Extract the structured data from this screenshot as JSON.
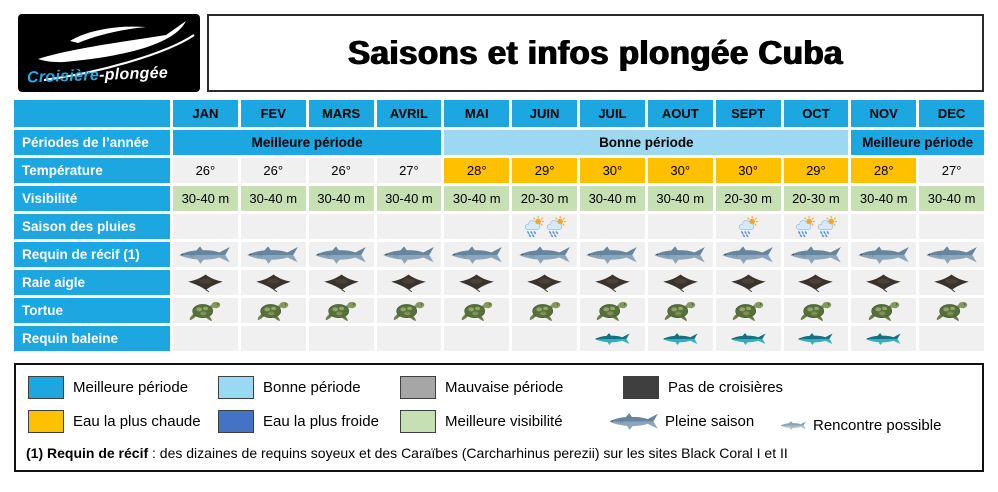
{
  "header": {
    "logo": {
      "brand": "Croisière-plongée",
      "brand_part1": "Croisière",
      "brand_part2": "-plongée"
    },
    "title": "Saisons et infos plongée Cuba"
  },
  "table": {
    "months": [
      "JAN",
      "FEV",
      "MARS",
      "AVRIL",
      "MAI",
      "JUIN",
      "JUIL",
      "AOUT",
      "SEPT",
      "OCT",
      "NOV",
      "DEC"
    ],
    "row_labels": [
      "Périodes de l’année",
      "Température",
      "Visibilité",
      "Saison des pluies",
      "Requin de récif (1)",
      "Raie aigle",
      "Tortue",
      "Requin baleine"
    ],
    "periods": [
      {
        "label": "Meilleure période",
        "months_span": 4,
        "type": "best"
      },
      {
        "label": "Bonne période",
        "months_span": 6,
        "type": "good"
      },
      {
        "label": "Meilleure période",
        "months_span": 2,
        "type": "best"
      }
    ],
    "temperature": {
      "values": [
        "26°",
        "26°",
        "26°",
        "27°",
        "28°",
        "29°",
        "30°",
        "30°",
        "30°",
        "29°",
        "28°",
        "27°"
      ],
      "hottest": [
        false,
        false,
        false,
        false,
        true,
        true,
        true,
        true,
        true,
        true,
        true,
        false
      ]
    },
    "visibility": [
      "30-40 m",
      "30-40 m",
      "30-40 m",
      "30-40 m",
      "30-40 m",
      "20-30 m",
      "30-40 m",
      "30-40 m",
      "20-30 m",
      "20-30 m",
      "30-40 m",
      "30-40 m"
    ],
    "rain_season_icons": [
      0,
      0,
      0,
      0,
      0,
      2,
      0,
      0,
      1,
      2,
      0,
      0
    ],
    "reef_shark": [
      1,
      1,
      1,
      1,
      1,
      1,
      1,
      1,
      1,
      1,
      1,
      1
    ],
    "eagle_ray": [
      1,
      1,
      1,
      1,
      1,
      1,
      1,
      1,
      1,
      1,
      1,
      1
    ],
    "turtle": [
      1,
      1,
      1,
      1,
      1,
      1,
      1,
      1,
      1,
      1,
      1,
      1
    ],
    "whale_shark": [
      0,
      0,
      0,
      0,
      0,
      0,
      1,
      1,
      1,
      1,
      1,
      0
    ]
  },
  "legend": {
    "items": [
      {
        "label": "Meilleure période",
        "color": "#1CA7E1"
      },
      {
        "label": "Bonne période",
        "color": "#9BD9F2"
      },
      {
        "label": "Mauvaise période",
        "color": "#A6A6A6"
      },
      {
        "label": "Pas de croisières",
        "color": "#3F3F3F"
      },
      {
        "label": "Eau la plus chaude",
        "color": "#FFC000"
      },
      {
        "label": "Eau la plus froide",
        "color": "#4472C4"
      },
      {
        "label": "Meilleure visibilité",
        "color": "#C6E0B4"
      },
      {
        "label": "Pleine saison",
        "icon": "shark-large-icon"
      },
      {
        "label": "Rencontre possible",
        "icon": "shark-small-icon"
      }
    ]
  },
  "footnote": {
    "bold": "(1) Requin de récif",
    "text": " : des dizaines de requins soyeux et des Caraïbes (Carcharhinus perezii) sur les sites Black Coral I et II"
  },
  "colors": {
    "header_blue": "#1CA7E1",
    "light_blue": "#9BD9F2",
    "hot_yellow": "#FFC000",
    "visibility_green": "#C6E0B4",
    "cell_gray": "#F0F0F0",
    "bad_gray": "#A6A6A6",
    "no_cruise_dark": "#3F3F3F",
    "cold_blue": "#4472C4"
  }
}
